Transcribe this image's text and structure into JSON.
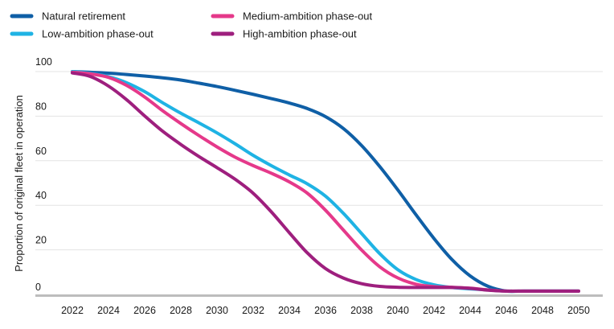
{
  "chart_data": {
    "type": "line",
    "title": "",
    "xlabel": "",
    "ylabel": "Proportion of original fleet in operation",
    "xlim": [
      2022,
      2050
    ],
    "ylim": [
      0,
      100
    ],
    "x_ticks": [
      2022,
      2024,
      2026,
      2028,
      2030,
      2032,
      2034,
      2036,
      2038,
      2040,
      2042,
      2044,
      2046,
      2048,
      2050
    ],
    "y_ticks": [
      0,
      20,
      40,
      60,
      80,
      100
    ],
    "grid": "horizontal",
    "legend_position": "top-left",
    "x": [
      2022,
      2023,
      2024,
      2025,
      2026,
      2027,
      2028,
      2029,
      2030,
      2031,
      2032,
      2033,
      2034,
      2035,
      2036,
      2037,
      2038,
      2039,
      2040,
      2041,
      2042,
      2043,
      2044,
      2045,
      2046,
      2047,
      2048,
      2049,
      2050
    ],
    "series": [
      {
        "name": "Natural retirement",
        "color": "#0f5fa6",
        "values": [
          100,
          99.7,
          99.3,
          98.7,
          98,
          97.2,
          96.2,
          94.8,
          93.3,
          91.6,
          89.8,
          87.9,
          85.9,
          83.4,
          79.8,
          74.4,
          66.8,
          57.4,
          46.9,
          35.8,
          25.1,
          15.6,
          8.3,
          3.6,
          1.5,
          1.5,
          1.5,
          1.5,
          1.5
        ]
      },
      {
        "name": "Low-ambition phase-out",
        "color": "#1fb3e4",
        "values": [
          100,
          99.2,
          97.7,
          95,
          91,
          86,
          81.3,
          77,
          72.5,
          67.6,
          62.4,
          57.8,
          53.6,
          49.6,
          44.1,
          36.3,
          27.3,
          18.3,
          11.1,
          6.7,
          4.3,
          3.1,
          2.5,
          2,
          1.5,
          1.5,
          1.5,
          1.5,
          1.5
        ]
      },
      {
        "name": "Medium-ambition phase-out",
        "color": "#e5398a",
        "values": [
          99.7,
          99,
          97.4,
          93.8,
          88.6,
          82.4,
          76.7,
          71.3,
          66.2,
          61.6,
          57.8,
          54.4,
          50.5,
          45.4,
          37.8,
          28.8,
          19.9,
          12.4,
          7.4,
          4.6,
          3.5,
          3.2,
          2.8,
          2,
          1.5,
          1.5,
          1.5,
          1.5,
          1.5
        ]
      },
      {
        "name": "High-ambition phase-out",
        "color": "#9e1f7e",
        "values": [
          99.4,
          97.8,
          93.5,
          87.4,
          80.1,
          73.2,
          67.3,
          61.9,
          56.9,
          51.7,
          45.4,
          37.1,
          27.7,
          18.6,
          11.6,
          7.3,
          4.8,
          3.6,
          3.2,
          3.1,
          3.1,
          3.1,
          2.7,
          1.9,
          1.5,
          1.5,
          1.5,
          1.5,
          1.5
        ]
      }
    ],
    "legend_order": [
      0,
      2,
      1,
      3
    ]
  }
}
